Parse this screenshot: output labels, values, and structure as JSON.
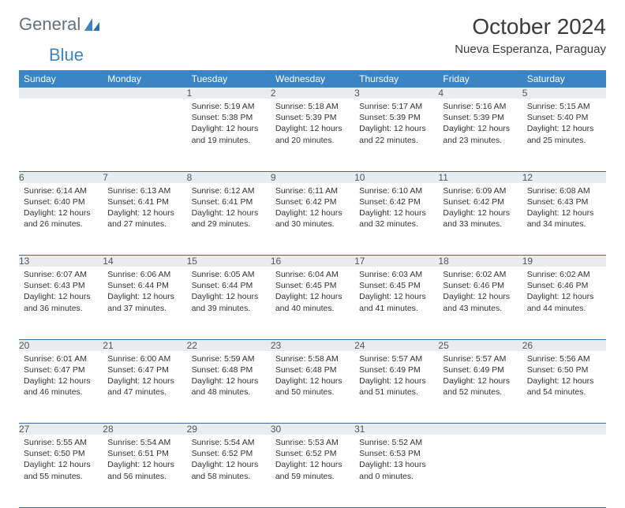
{
  "logo": {
    "text_general": "General",
    "text_blue": "Blue"
  },
  "header": {
    "month": "October 2024",
    "location": "Nueva Esperanza, Paraguay"
  },
  "colors": {
    "header_bg": "#3a85c6",
    "header_text": "#ffffff",
    "daynum_bg": "#e9edef",
    "row_border": "#3a6ea5",
    "body_text": "#333333",
    "page_bg": "#ffffff",
    "logo_blue": "#3a85c6",
    "logo_gray": "#6b7075"
  },
  "typography": {
    "month_title_pt": 28,
    "location_pt": 15,
    "dayheader_pt": 12,
    "daynum_pt": 12,
    "cell_pt": 10.5
  },
  "weekdays": [
    "Sunday",
    "Monday",
    "Tuesday",
    "Wednesday",
    "Thursday",
    "Friday",
    "Saturday"
  ],
  "layout": {
    "first_weekday_index": 2,
    "days_in_month": 31
  },
  "days": {
    "1": {
      "sunrise": "5:19 AM",
      "sunset": "5:38 PM",
      "daylight": "12 hours and 19 minutes."
    },
    "2": {
      "sunrise": "5:18 AM",
      "sunset": "5:39 PM",
      "daylight": "12 hours and 20 minutes."
    },
    "3": {
      "sunrise": "5:17 AM",
      "sunset": "5:39 PM",
      "daylight": "12 hours and 22 minutes."
    },
    "4": {
      "sunrise": "5:16 AM",
      "sunset": "5:39 PM",
      "daylight": "12 hours and 23 minutes."
    },
    "5": {
      "sunrise": "5:15 AM",
      "sunset": "5:40 PM",
      "daylight": "12 hours and 25 minutes."
    },
    "6": {
      "sunrise": "6:14 AM",
      "sunset": "6:40 PM",
      "daylight": "12 hours and 26 minutes."
    },
    "7": {
      "sunrise": "6:13 AM",
      "sunset": "6:41 PM",
      "daylight": "12 hours and 27 minutes."
    },
    "8": {
      "sunrise": "6:12 AM",
      "sunset": "6:41 PM",
      "daylight": "12 hours and 29 minutes."
    },
    "9": {
      "sunrise": "6:11 AM",
      "sunset": "6:42 PM",
      "daylight": "12 hours and 30 minutes."
    },
    "10": {
      "sunrise": "6:10 AM",
      "sunset": "6:42 PM",
      "daylight": "12 hours and 32 minutes."
    },
    "11": {
      "sunrise": "6:09 AM",
      "sunset": "6:42 PM",
      "daylight": "12 hours and 33 minutes."
    },
    "12": {
      "sunrise": "6:08 AM",
      "sunset": "6:43 PM",
      "daylight": "12 hours and 34 minutes."
    },
    "13": {
      "sunrise": "6:07 AM",
      "sunset": "6:43 PM",
      "daylight": "12 hours and 36 minutes."
    },
    "14": {
      "sunrise": "6:06 AM",
      "sunset": "6:44 PM",
      "daylight": "12 hours and 37 minutes."
    },
    "15": {
      "sunrise": "6:05 AM",
      "sunset": "6:44 PM",
      "daylight": "12 hours and 39 minutes."
    },
    "16": {
      "sunrise": "6:04 AM",
      "sunset": "6:45 PM",
      "daylight": "12 hours and 40 minutes."
    },
    "17": {
      "sunrise": "6:03 AM",
      "sunset": "6:45 PM",
      "daylight": "12 hours and 41 minutes."
    },
    "18": {
      "sunrise": "6:02 AM",
      "sunset": "6:46 PM",
      "daylight": "12 hours and 43 minutes."
    },
    "19": {
      "sunrise": "6:02 AM",
      "sunset": "6:46 PM",
      "daylight": "12 hours and 44 minutes."
    },
    "20": {
      "sunrise": "6:01 AM",
      "sunset": "6:47 PM",
      "daylight": "12 hours and 46 minutes."
    },
    "21": {
      "sunrise": "6:00 AM",
      "sunset": "6:47 PM",
      "daylight": "12 hours and 47 minutes."
    },
    "22": {
      "sunrise": "5:59 AM",
      "sunset": "6:48 PM",
      "daylight": "12 hours and 48 minutes."
    },
    "23": {
      "sunrise": "5:58 AM",
      "sunset": "6:48 PM",
      "daylight": "12 hours and 50 minutes."
    },
    "24": {
      "sunrise": "5:57 AM",
      "sunset": "6:49 PM",
      "daylight": "12 hours and 51 minutes."
    },
    "25": {
      "sunrise": "5:57 AM",
      "sunset": "6:49 PM",
      "daylight": "12 hours and 52 minutes."
    },
    "26": {
      "sunrise": "5:56 AM",
      "sunset": "6:50 PM",
      "daylight": "12 hours and 54 minutes."
    },
    "27": {
      "sunrise": "5:55 AM",
      "sunset": "6:50 PM",
      "daylight": "12 hours and 55 minutes."
    },
    "28": {
      "sunrise": "5:54 AM",
      "sunset": "6:51 PM",
      "daylight": "12 hours and 56 minutes."
    },
    "29": {
      "sunrise": "5:54 AM",
      "sunset": "6:52 PM",
      "daylight": "12 hours and 58 minutes."
    },
    "30": {
      "sunrise": "5:53 AM",
      "sunset": "6:52 PM",
      "daylight": "12 hours and 59 minutes."
    },
    "31": {
      "sunrise": "5:52 AM",
      "sunset": "6:53 PM",
      "daylight": "13 hours and 0 minutes."
    }
  },
  "labels": {
    "sunrise_prefix": "Sunrise: ",
    "sunset_prefix": "Sunset: ",
    "daylight_prefix": "Daylight: "
  }
}
